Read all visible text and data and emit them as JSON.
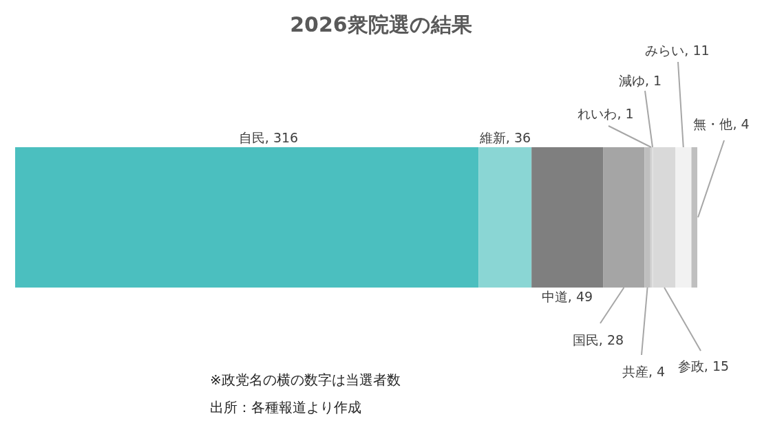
{
  "chart_data": {
    "type": "bar",
    "title": "2026衆院選の結果",
    "orientation": "horizontal",
    "stacked": true,
    "categories": [
      null
    ],
    "series": [
      {
        "color": "#4bbfbf",
        "values": [
          316
        ],
        "value_labels": [
          "自民, 316"
        ]
      },
      {
        "color": "#8ad6d4",
        "values": [
          36
        ],
        "value_labels": [
          "維新, 36"
        ]
      },
      {
        "color": "#7f7f7f",
        "values": [
          49
        ],
        "value_labels": [
          "中道, 49"
        ]
      },
      {
        "color": "#a5a5a5",
        "values": [
          28
        ],
        "value_labels": [
          "国民, 28"
        ]
      },
      {
        "color": "#bfbfbf",
        "values": [
          4
        ],
        "value_labels": [
          "共産, 4"
        ]
      },
      {
        "color": "#cfcfcf",
        "values": [
          1
        ],
        "value_labels": [
          "れいわ, 1"
        ]
      },
      {
        "color": "#e0e0e0",
        "values": [
          1
        ],
        "value_labels": [
          "減ゆ, 1"
        ]
      },
      {
        "color": "#d9d9d9",
        "values": [
          15
        ],
        "value_labels": [
          "参政, 15"
        ]
      },
      {
        "color": "#f2f2f2",
        "values": [
          11
        ],
        "value_labels": [
          "みらい, 11"
        ]
      },
      {
        "color": "#bfbfbf",
        "values": [
          4
        ],
        "value_labels": [
          "無・他, 4"
        ]
      }
    ],
    "annotations": [
      "※政党名の横の数字は当選者数",
      "出所：各種報道より作成"
    ]
  }
}
